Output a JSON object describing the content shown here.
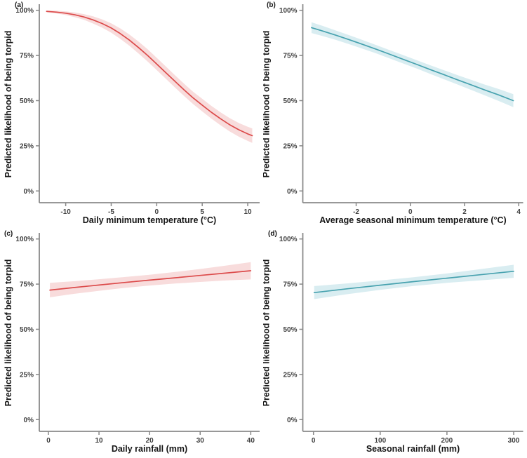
{
  "style": {
    "background": "#ffffff",
    "axis_color": "#898989",
    "tick_text_color": "#3f3f3f",
    "title_text_color": "#151515",
    "red_line": "#dc4b4b",
    "red_band": "#f8dcdc",
    "teal_line": "#47a2af",
    "teal_band": "#d9edf1"
  },
  "chart_data": [
    {
      "type": "line",
      "panel_label": "(a)",
      "xlabel": "Daily minimum temperature (°C)",
      "ylabel": "Predicted likelihood of being torpid",
      "line_color": "#dc4b4b",
      "band_color": "#f8dcdc",
      "xlim": [
        -12.9,
        11.0
      ],
      "ylim": [
        -6.5,
        102.6
      ],
      "xticks": [
        -10,
        -5,
        0,
        5,
        10
      ],
      "xtick_labels": [
        "-10",
        "-5",
        "0",
        "5",
        "10"
      ],
      "yticks": [
        0,
        25,
        50,
        75,
        100
      ],
      "ytick_labels": [
        "0%",
        "25%",
        "50%",
        "75%",
        "100%"
      ],
      "x": [
        -12.1,
        -11,
        -10,
        -9,
        -8,
        -7,
        -6,
        -5,
        -4,
        -3,
        -2,
        -1,
        0,
        1,
        2,
        3,
        4,
        5,
        6,
        7,
        8,
        9,
        10,
        10.5
      ],
      "y": [
        99.4,
        99.0,
        98.4,
        97.5,
        96.3,
        94.7,
        92.7,
        90.2,
        87.1,
        83.5,
        79.4,
        75.0,
        70.3,
        65.5,
        60.7,
        56.0,
        51.5,
        47.5,
        43.6,
        40.0,
        36.7,
        33.9,
        31.6,
        30.6
      ],
      "hw": [
        0.6,
        0.8,
        1.0,
        1.3,
        1.6,
        2.0,
        2.3,
        2.6,
        2.9,
        3.1,
        3.3,
        3.4,
        3.4,
        3.4,
        3.4,
        3.4,
        3.4,
        3.5,
        3.5,
        3.6,
        3.7,
        3.8,
        3.9,
        4.0
      ]
    },
    {
      "type": "line",
      "panel_label": "(b)",
      "xlabel": "Average seasonal minimum temperature (°C)",
      "ylabel": "Predicted likelihood of being torpid",
      "line_color": "#47a2af",
      "band_color": "#d9edf1",
      "xlim": [
        -3.97,
        4.06
      ],
      "ylim": [
        -6.5,
        102.6
      ],
      "xticks": [
        -2,
        0,
        2,
        4
      ],
      "xtick_labels": [
        "-2",
        "0",
        "2",
        "4"
      ],
      "yticks": [
        0,
        25,
        50,
        75,
        100
      ],
      "ytick_labels": [
        "0%",
        "25%",
        "50%",
        "75%",
        "100%"
      ],
      "x": [
        -3.65,
        -3.25,
        -2.75,
        -2.25,
        -1.75,
        -1.25,
        -0.75,
        -0.25,
        0.25,
        0.75,
        1.25,
        1.75,
        2.25,
        2.75,
        3.25,
        3.8
      ],
      "y": [
        90.4,
        88.6,
        86.2,
        83.7,
        81.1,
        78.4,
        75.6,
        72.8,
        70.0,
        67.1,
        64.3,
        61.5,
        58.7,
        55.9,
        53.2,
        50.0
      ],
      "hw": [
        3.0,
        2.8,
        2.6,
        2.5,
        2.4,
        2.3,
        2.3,
        2.3,
        2.3,
        2.4,
        2.5,
        2.6,
        2.8,
        3.0,
        3.3,
        3.6
      ]
    },
    {
      "type": "line",
      "panel_label": "(c)",
      "xlabel": "Daily rainfall (mm)",
      "ylabel": "Predicted likelihood of being torpid",
      "line_color": "#dc4b4b",
      "band_color": "#f8dcdc",
      "xlim": [
        -1.8,
        41.2
      ],
      "ylim": [
        -6.5,
        102.6
      ],
      "xticks": [
        0,
        10,
        20,
        30,
        40
      ],
      "xtick_labels": [
        "0",
        "10",
        "20",
        "30",
        "40"
      ],
      "yticks": [
        0,
        25,
        50,
        75,
        100
      ],
      "ytick_labels": [
        "0%",
        "25%",
        "50%",
        "75%",
        "100%"
      ],
      "x": [
        0.3,
        5,
        10,
        15,
        20,
        25,
        30,
        35,
        40
      ],
      "y": [
        71.7,
        73.1,
        74.5,
        75.9,
        77.2,
        78.5,
        79.8,
        81.1,
        82.4
      ],
      "hw": [
        4.0,
        3.5,
        3.2,
        3.0,
        3.0,
        3.2,
        3.6,
        4.1,
        4.8
      ]
    },
    {
      "type": "line",
      "panel_label": "(d)",
      "xlabel": "Seasonal rainfall (mm)",
      "ylabel": "Predicted likelihood of being torpid",
      "line_color": "#47a2af",
      "band_color": "#d9edf1",
      "xlim": [
        -16,
        310
      ],
      "ylim": [
        -6.5,
        102.6
      ],
      "xticks": [
        0,
        100,
        200,
        300
      ],
      "xtick_labels": [
        "0",
        "100",
        "200",
        "300"
      ],
      "yticks": [
        0,
        25,
        50,
        75,
        100
      ],
      "ytick_labels": [
        "0%",
        "25%",
        "50%",
        "75%",
        "100%"
      ],
      "x": [
        1,
        50,
        100,
        150,
        200,
        250,
        300
      ],
      "y": [
        70.3,
        72.4,
        74.4,
        76.4,
        78.3,
        80.2,
        82.1
      ],
      "hw": [
        3.6,
        3.0,
        2.6,
        2.4,
        2.6,
        3.1,
        3.6
      ]
    }
  ]
}
